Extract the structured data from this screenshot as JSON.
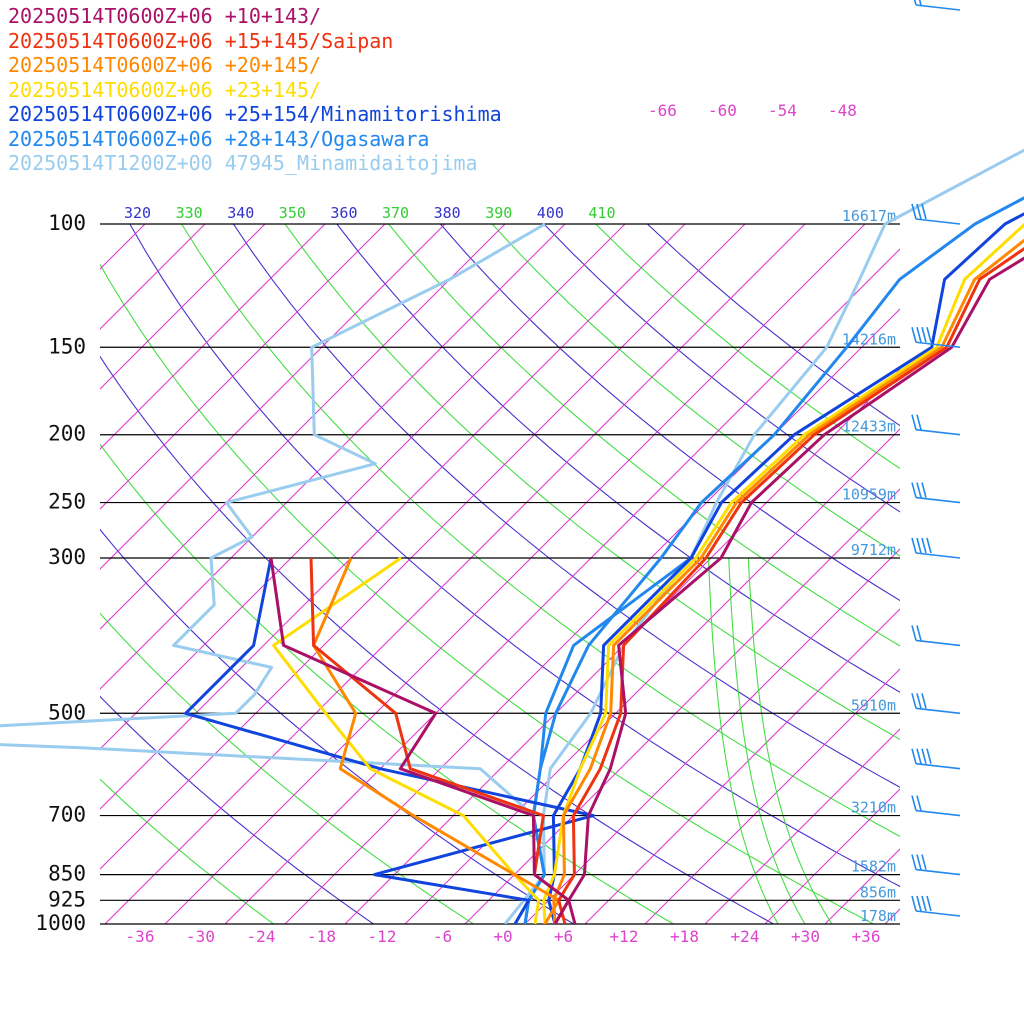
{
  "chart_data": {
    "type": "line",
    "legend_placement": "top-left",
    "pressure_levels": [
      {
        "p": 100,
        "label": "100",
        "height": "16617m"
      },
      {
        "p": 150,
        "label": "150",
        "height": "14216m"
      },
      {
        "p": 200,
        "label": "200",
        "height": "12433m"
      },
      {
        "p": 250,
        "label": "250",
        "height": "10959m"
      },
      {
        "p": 300,
        "label": "300",
        "height": "9712m"
      },
      {
        "p": 500,
        "label": "500",
        "height": "5910m"
      },
      {
        "p": 700,
        "label": "700",
        "height": "3210m"
      },
      {
        "p": 850,
        "label": "850",
        "height": "1582m"
      },
      {
        "p": 925,
        "label": "925",
        "height": "856m"
      },
      {
        "p": 1000,
        "label": "1000",
        "height": "178m"
      }
    ],
    "temperature_ticks": [
      "-36",
      "-30",
      "-24",
      "-18",
      "-12",
      "-6",
      "+0",
      "+6",
      "+12",
      "+18",
      "+24",
      "+30",
      "+36"
    ],
    "upper_temperature_labels": [
      "-66",
      "-60",
      "-54",
      "-48"
    ],
    "theta_labels": [
      {
        "label": "320",
        "color": "#3333cc"
      },
      {
        "label": "330",
        "color": "#33cc33"
      },
      {
        "label": "340",
        "color": "#3333cc"
      },
      {
        "label": "350",
        "color": "#33cc33"
      },
      {
        "label": "360",
        "color": "#3333cc"
      },
      {
        "label": "370",
        "color": "#33cc33"
      },
      {
        "label": "380",
        "color": "#3333cc"
      },
      {
        "label": "390",
        "color": "#33cc33"
      },
      {
        "label": "400",
        "color": "#3333cc"
      },
      {
        "label": "410",
        "color": "#33cc33"
      }
    ],
    "series": [
      {
        "name": "20250514T0600Z+06 +10+143/",
        "color": "#aa1166",
        "temperature": [
          [
            100,
            -12.5
          ],
          [
            120,
            -16
          ],
          [
            150,
            -13
          ],
          [
            200,
            -17
          ],
          [
            250,
            -17.5
          ],
          [
            300,
            -15
          ],
          [
            400,
            -16.5
          ],
          [
            500,
            -9
          ],
          [
            600,
            -5
          ],
          [
            700,
            -2.5
          ],
          [
            850,
            3
          ],
          [
            925,
            4
          ],
          [
            1000,
            7
          ]
        ],
        "dewpoint": [
          [
            300,
            -60
          ],
          [
            400,
            -50
          ],
          [
            500,
            -28
          ],
          [
            600,
            -26
          ],
          [
            700,
            -8
          ],
          [
            850,
            -2
          ],
          [
            925,
            4
          ],
          [
            1000,
            5
          ]
        ]
      },
      {
        "name": "20250514T0600Z+06 +15+145/Saipan",
        "color": "#ee3311",
        "temperature": [
          [
            100,
            -14.5
          ],
          [
            120,
            -17
          ],
          [
            150,
            -13.5
          ],
          [
            200,
            -18
          ],
          [
            250,
            -18.5
          ],
          [
            300,
            -16.5
          ],
          [
            400,
            -16
          ],
          [
            500,
            -9.5
          ],
          [
            600,
            -6
          ],
          [
            700,
            -4
          ],
          [
            850,
            2
          ],
          [
            925,
            3
          ],
          [
            1000,
            6
          ]
        ],
        "dewpoint": [
          [
            300,
            -56
          ],
          [
            400,
            -47
          ],
          [
            500,
            -32
          ],
          [
            600,
            -25
          ],
          [
            700,
            -7
          ],
          [
            850,
            -2
          ],
          [
            925,
            4
          ],
          [
            1000,
            5
          ]
        ]
      },
      {
        "name": "20250514T0600Z+06 +20+145/",
        "color": "#ff8800",
        "temperature": [
          [
            100,
            -16
          ],
          [
            120,
            -17.5
          ],
          [
            150,
            -14
          ],
          [
            200,
            -18.5
          ],
          [
            250,
            -19
          ],
          [
            300,
            -17
          ],
          [
            400,
            -17
          ],
          [
            500,
            -10.5
          ],
          [
            600,
            -7
          ],
          [
            700,
            -5
          ],
          [
            850,
            1
          ],
          [
            925,
            2.5
          ],
          [
            1000,
            5
          ]
        ],
        "dewpoint": [
          [
            300,
            -52
          ],
          [
            400,
            -47
          ],
          [
            500,
            -36
          ],
          [
            600,
            -32
          ],
          [
            700,
            -20
          ],
          [
            850,
            -4
          ],
          [
            925,
            3
          ],
          [
            1000,
            4
          ]
        ]
      },
      {
        "name": "20250514T0600Z+06 +23+145/",
        "color": "#ffdd00",
        "temperature": [
          [
            100,
            -18
          ],
          [
            120,
            -18.5
          ],
          [
            150,
            -14.5
          ],
          [
            200,
            -19
          ],
          [
            250,
            -19.5
          ],
          [
            300,
            -17.5
          ],
          [
            400,
            -17.5
          ],
          [
            500,
            -11
          ],
          [
            600,
            -8
          ],
          [
            700,
            -5
          ],
          [
            850,
            0
          ],
          [
            925,
            1.5
          ],
          [
            1000,
            4
          ]
        ],
        "dewpoint": [
          [
            300,
            -47
          ],
          [
            400,
            -51
          ],
          [
            500,
            -39
          ],
          [
            600,
            -29
          ],
          [
            700,
            -15
          ],
          [
            850,
            -4
          ],
          [
            925,
            1
          ],
          [
            1000,
            3
          ]
        ]
      },
      {
        "name": "20250514T0600Z+06 +25+154/Minamitorishima",
        "color": "#1144dd",
        "temperature": [
          [
            100,
            -20
          ],
          [
            120,
            -20.5
          ],
          [
            150,
            -15
          ],
          [
            200,
            -20
          ],
          [
            250,
            -20.5
          ],
          [
            300,
            -18
          ],
          [
            400,
            -18
          ],
          [
            500,
            -11.5
          ],
          [
            600,
            -8
          ],
          [
            700,
            -6
          ],
          [
            850,
            0
          ],
          [
            925,
            2
          ],
          [
            1000,
            5
          ]
        ],
        "dewpoint": [
          [
            300,
            -60
          ],
          [
            400,
            -53
          ],
          [
            500,
            -53
          ],
          [
            600,
            -28
          ],
          [
            700,
            -2
          ],
          [
            850,
            -18
          ],
          [
            925,
            0
          ],
          [
            1000,
            1
          ]
        ]
      },
      {
        "name": "20250514T0600Z+06 +28+143/Ogasawara",
        "color": "#2288ee",
        "temperature": [
          [
            100,
            -23
          ],
          [
            120,
            -25
          ],
          [
            150,
            -23.5
          ],
          [
            200,
            -22
          ],
          [
            250,
            -22.5
          ],
          [
            300,
            -21
          ],
          [
            400,
            -19.5
          ],
          [
            500,
            -16
          ],
          [
            600,
            -12
          ],
          [
            700,
            -8
          ],
          [
            850,
            -1
          ],
          [
            925,
            0
          ],
          [
            1000,
            2
          ]
        ],
        "dewpoint": [
          [
            300,
            -18
          ],
          [
            400,
            -21
          ],
          [
            500,
            -17
          ],
          [
            600,
            -12
          ],
          [
            700,
            -8
          ],
          [
            850,
            -1
          ],
          [
            925,
            0
          ],
          [
            1000,
            2
          ]
        ]
      },
      {
        "name": "20250514T1200Z+00 47945_Minamidaitojima",
        "color": "#99ccee",
        "temperature": [
          [
            100,
            -32
          ],
          [
            120,
            -29
          ],
          [
            150,
            -25.5
          ],
          [
            200,
            -24
          ],
          [
            250,
            -21
          ],
          [
            300,
            -18
          ],
          [
            350,
            -17
          ],
          [
            400,
            -16
          ],
          [
            500,
            -12.5
          ],
          [
            600,
            -11
          ],
          [
            700,
            -7
          ],
          [
            850,
            -1
          ],
          [
            925,
            0
          ],
          [
            1000,
            1
          ]
        ],
        "dewpoint": [
          [
            100,
            -66
          ],
          [
            120,
            -70
          ],
          [
            150,
            -77
          ],
          [
            200,
            -68
          ],
          [
            220,
            -59
          ],
          [
            250,
            -70
          ],
          [
            280,
            -64
          ],
          [
            300,
            -66
          ],
          [
            350,
            -61
          ],
          [
            400,
            -61
          ],
          [
            430,
            -49
          ],
          [
            470,
            -48
          ],
          [
            500,
            -48
          ],
          [
            540,
            -90
          ],
          [
            560,
            -60
          ],
          [
            600,
            -18
          ],
          [
            700,
            -8
          ],
          [
            850,
            -1
          ],
          [
            1000,
            0
          ]
        ]
      }
    ]
  }
}
